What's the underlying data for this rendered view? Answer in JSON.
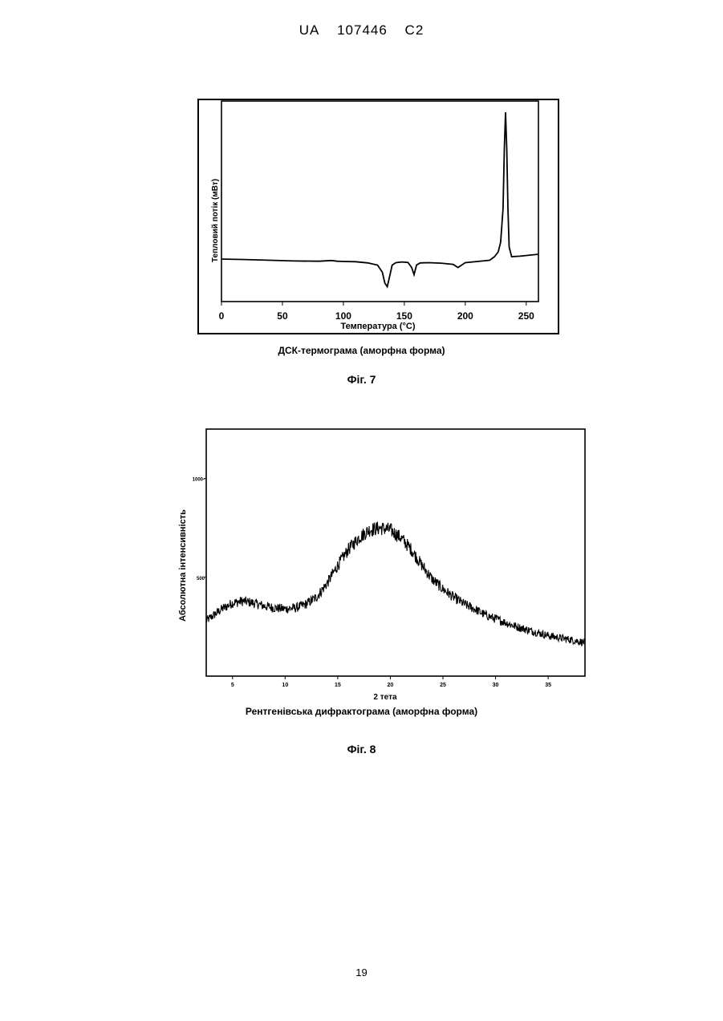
{
  "header": {
    "country": "UA",
    "number": "107446",
    "kind": "C2"
  },
  "fig7": {
    "caption": "ДСК-термограма (аморфна форма)",
    "label": "Фіг. 7",
    "chart_data": {
      "type": "line",
      "title": "",
      "xlabel": "Температура (°C)",
      "ylabel": "Тепловий потік (мВт)",
      "xlim": [
        0,
        260
      ],
      "xticks": [
        0,
        50,
        100,
        150,
        200,
        250
      ],
      "xtick_labels": [
        "0",
        "50",
        "100",
        "150",
        "200",
        "250"
      ],
      "yticks_shown": false,
      "grid": false,
      "series": [
        {
          "x": [
            0,
            20,
            40,
            60,
            80,
            90,
            95,
            100,
            110,
            120,
            128,
            132,
            134,
            136,
            138,
            140,
            143,
            148,
            153,
            156,
            158,
            160,
            163,
            170,
            180,
            190,
            194,
            197,
            200,
            210,
            220,
            224,
            227,
            229,
            231,
            232,
            233,
            234,
            235,
            236,
            238,
            245,
            260
          ],
          "y": [
            -1.0,
            -1.2,
            -1.5,
            -1.8,
            -1.9,
            -1.6,
            -1.9,
            -2.0,
            -2.1,
            -2.6,
            -3.5,
            -6.5,
            -11.0,
            -12.5,
            -8.0,
            -3.5,
            -2.5,
            -2.2,
            -2.4,
            -4.5,
            -7.5,
            -3.5,
            -2.6,
            -2.5,
            -2.7,
            -3.2,
            -4.5,
            -3.5,
            -2.5,
            -2.0,
            -1.5,
            0.0,
            2.0,
            6.0,
            20.0,
            45.0,
            60.0,
            45.0,
            20.0,
            4.0,
            0.0,
            0.2,
            1.0
          ]
        }
      ]
    }
  },
  "fig8": {
    "caption": "Рентгенівська дифрактограма (аморфна форма)",
    "label": "Фіг. 8",
    "chart_data": {
      "type": "line",
      "title": "",
      "xlabel": "2 тета",
      "ylabel": "Абсолютна інтенсивність",
      "xlim": [
        2.5,
        38.5
      ],
      "ylim": [
        0,
        1250
      ],
      "xticks": [
        5,
        10,
        15,
        20,
        25,
        30,
        35
      ],
      "xtick_labels": [
        "5",
        "10",
        "15",
        "20",
        "25",
        "30",
        "35"
      ],
      "yticks": [
        500,
        1000
      ],
      "ytick_labels": [
        "500",
        "1000-"
      ],
      "grid": false,
      "series": [
        {
          "x": [
            2.5,
            4,
            5,
            6,
            7,
            8,
            9,
            10,
            11,
            12,
            13,
            14,
            15,
            16,
            17,
            18,
            19,
            20,
            21,
            22,
            23,
            24,
            25,
            26,
            27,
            28,
            29,
            30,
            31,
            32,
            33,
            34,
            35,
            36,
            37,
            38.5
          ],
          "y": [
            280,
            340,
            370,
            380,
            370,
            355,
            345,
            340,
            345,
            365,
            400,
            470,
            560,
            640,
            700,
            740,
            750,
            740,
            700,
            640,
            560,
            490,
            440,
            400,
            365,
            340,
            310,
            290,
            270,
            250,
            235,
            220,
            205,
            195,
            185,
            170
          ]
        }
      ]
    }
  },
  "page_number": "19"
}
